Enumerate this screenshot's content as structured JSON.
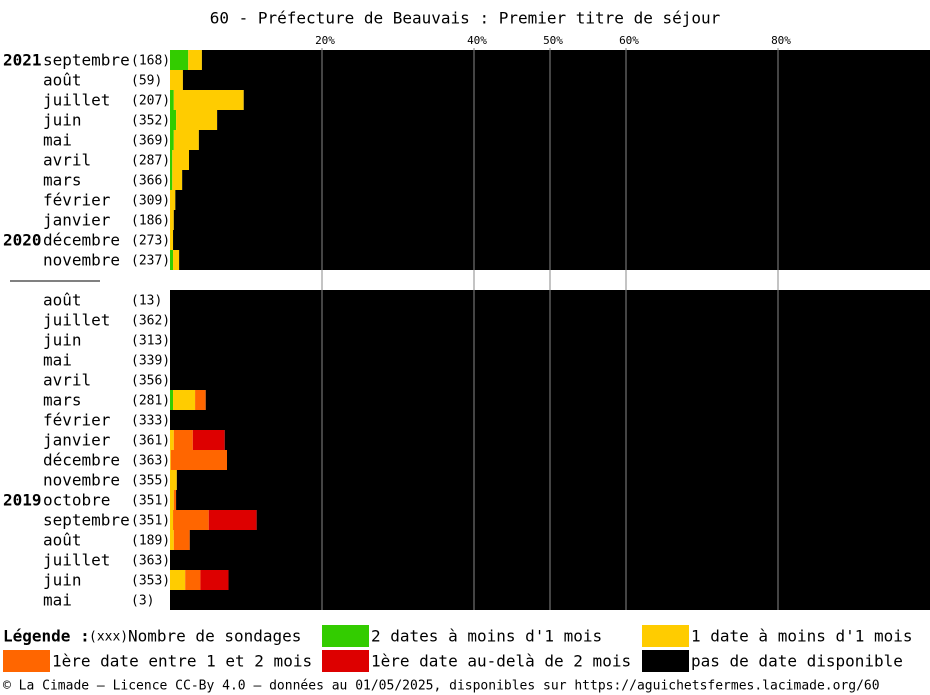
{
  "chart_data": {
    "type": "stacked-barh",
    "title": "60 - Préfecture de Beauvais : Premier titre de séjour",
    "years": [
      "2021",
      null,
      null,
      null,
      null,
      null,
      null,
      null,
      null,
      "2020",
      null,
      null,
      null,
      null,
      null,
      null,
      null,
      null,
      null,
      null,
      null,
      null,
      "2019",
      null,
      null,
      null,
      null,
      null,
      null,
      null
    ],
    "categories": [
      "septembre",
      "août",
      "juillet",
      "juin",
      "mai",
      "avril",
      "mars",
      "février",
      "janvier",
      "décembre",
      "novembre",
      null,
      "août",
      "juillet",
      "juin",
      "mai",
      "avril",
      "mars",
      "février",
      "janvier",
      "décembre",
      "novembre",
      "octobre",
      "septembre",
      "août",
      "juillet",
      "juin",
      "mai"
    ],
    "counts": [
      "(168)",
      "(59)",
      "(207)",
      "(352)",
      "(369)",
      "(287)",
      "(366)",
      "(309)",
      "(186)",
      "(273)",
      "(237)",
      null,
      "(13)",
      "(362)",
      "(313)",
      "(339)",
      "(356)",
      "(281)",
      "(333)",
      "(361)",
      "(363)",
      "(355)",
      "(351)",
      "(351)",
      "(189)",
      "(363)",
      "(353)",
      "(3)"
    ],
    "series": [
      {
        "name": "2 dates à moins d'1 mois",
        "color": "#33cc00",
        "values": [
          2.4,
          0,
          0.5,
          0.8,
          0.5,
          0.3,
          0.3,
          0,
          0,
          0,
          0.4,
          null,
          0,
          0,
          0,
          0,
          0,
          0.4,
          0,
          0,
          0,
          0,
          0,
          0,
          0,
          0,
          0,
          0
        ]
      },
      {
        "name": "1 date à moins d'1 mois",
        "color": "#ffcc00",
        "values": [
          1.8,
          1.7,
          9.2,
          5.4,
          3.3,
          2.2,
          1.3,
          0.7,
          0.5,
          0.4,
          0.8,
          null,
          0,
          0,
          0,
          0,
          0,
          2.9,
          0,
          0.5,
          0.1,
          0.9,
          0.5,
          0.4,
          0.5,
          0,
          2.0,
          0
        ]
      },
      {
        "name": "1ère date entre 1 et 2 mois",
        "color": "#ff6600",
        "values": [
          0,
          0,
          0,
          0,
          0,
          0,
          0,
          0,
          0,
          0,
          0,
          null,
          0,
          0,
          0,
          0,
          0,
          1.4,
          0,
          2.5,
          7.4,
          0,
          0.3,
          4.7,
          2.1,
          0,
          2.0,
          0
        ]
      },
      {
        "name": "1ère date au-delà de 2 mois",
        "color": "#dd0000",
        "values": [
          0,
          0,
          0,
          0,
          0,
          0,
          0,
          0,
          0,
          0,
          0,
          null,
          0,
          0,
          0,
          0,
          0,
          0,
          0,
          4.2,
          0,
          0,
          0,
          6.3,
          0,
          0,
          3.7,
          0
        ]
      },
      {
        "name": "pas de date disponible",
        "color": "#000000",
        "values": [
          95.8,
          98.3,
          90.3,
          93.8,
          96.2,
          97.5,
          98.4,
          99.3,
          99.5,
          99.6,
          98.8,
          null,
          100,
          100,
          100,
          100,
          100,
          95.3,
          100,
          92.8,
          92.5,
          99.1,
          99.2,
          88.6,
          97.4,
          100,
          92.3,
          100
        ]
      }
    ],
    "xlim": [
      0,
      100
    ],
    "xticks": [
      {
        "value": 20,
        "label": "20%"
      },
      {
        "value": 40,
        "label": "40%"
      },
      {
        "value": 50,
        "label": "50%"
      },
      {
        "value": 60,
        "label": "60%"
      },
      {
        "value": 80,
        "label": "80%"
      }
    ],
    "grid": true,
    "legend": {
      "title": "Légende :",
      "count_key": "(xxx)",
      "count_text": "Nombre de sondages"
    },
    "footer": "© La Cimade — Licence CC-By 4.0 — données au 01/05/2025, disponibles sur https://aguichetsfermes.lacimade.org/60"
  }
}
